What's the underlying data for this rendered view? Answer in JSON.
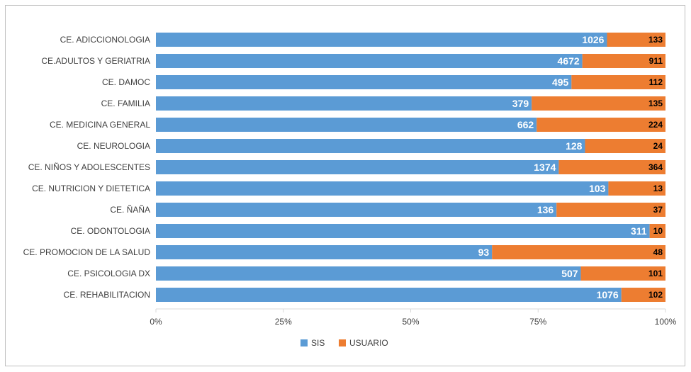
{
  "chart_data": {
    "type": "bar",
    "orientation": "horizontal",
    "stacked": "percent",
    "categories": [
      "CE. ADICCIONOLOGIA",
      "CE.ADULTOS Y GERIATRIA",
      "CE. DAMOC",
      "CE. FAMILIA",
      "CE. MEDICINA GENERAL",
      "CE. NEUROLOGIA",
      "CE. NIÑOS Y ADOLESCENTES",
      "CE. NUTRICION Y DIETETICA",
      "CE. ÑAÑA",
      "CE. ODONTOLOGIA",
      "CE. PROMOCION DE LA SALUD",
      "CE. PSICOLOGIA DX",
      "CE. REHABILITACION"
    ],
    "series": [
      {
        "name": "SIS",
        "color": "#5b9bd5",
        "values": [
          1026,
          4672,
          495,
          379,
          662,
          128,
          1374,
          103,
          136,
          311,
          93,
          507,
          1076
        ]
      },
      {
        "name": "USUARIO",
        "color": "#ed7d31",
        "values": [
          133,
          911,
          112,
          135,
          224,
          24,
          364,
          13,
          37,
          10,
          48,
          101,
          102
        ]
      }
    ],
    "x_ticks": [
      "0%",
      "25%",
      "50%",
      "75%",
      "100%"
    ],
    "xlim": [
      0,
      100
    ],
    "gridlines": false,
    "legend": "bottom-center",
    "title": "",
    "xlabel": "",
    "ylabel": ""
  }
}
